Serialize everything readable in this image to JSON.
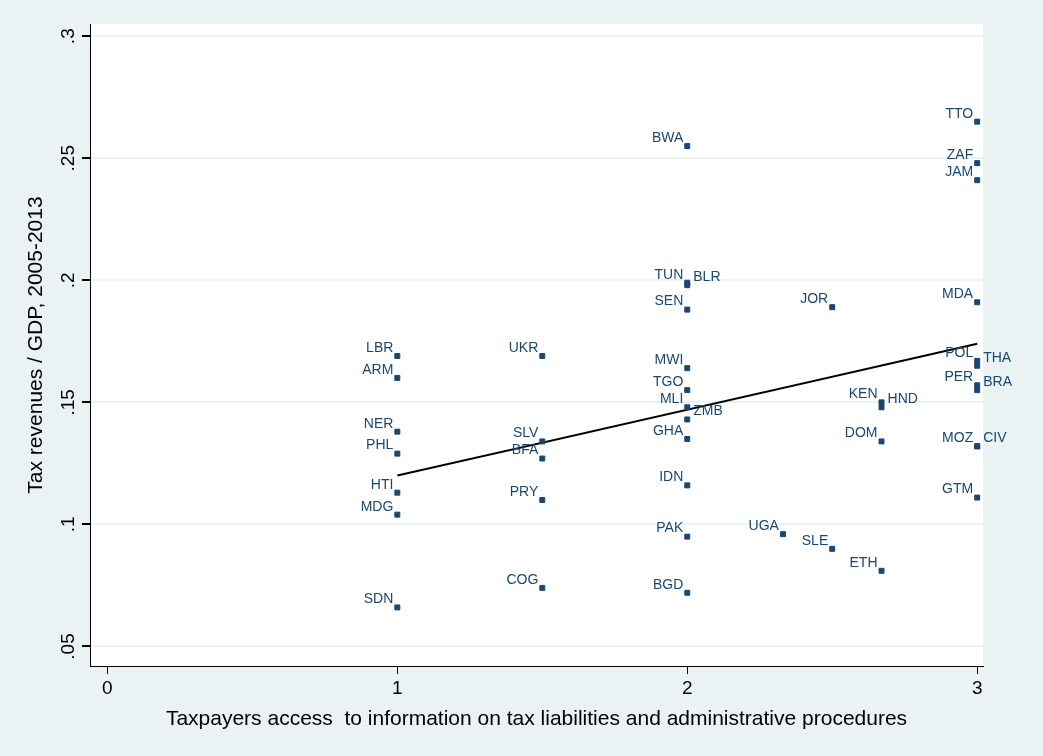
{
  "chart_data": {
    "type": "scatter",
    "xlabel": "Taxpayers access  to information on tax liabilities and administrative procedures",
    "ylabel": "Tax revenues / GDP, 2005-2013",
    "xlim": [
      -0.06,
      3.02
    ],
    "ylim": [
      0.042,
      0.305
    ],
    "xticks": [
      0,
      1,
      2,
      3
    ],
    "yticks": [
      {
        "value": 0.05,
        "label": ".05"
      },
      {
        "value": 0.1,
        "label": ".1"
      },
      {
        "value": 0.15,
        "label": ".15"
      },
      {
        "value": 0.2,
        "label": ".2"
      },
      {
        "value": 0.25,
        "label": ".25"
      },
      {
        "value": 0.3,
        "label": ".3"
      }
    ],
    "grid": "y",
    "series": [
      {
        "color": "#1a476f",
        "marker": "square",
        "x": [
          1,
          1,
          1,
          1,
          1,
          1,
          1,
          1.5,
          1.5,
          1.5,
          1.5,
          1.5,
          2,
          2,
          2,
          2,
          2,
          2,
          2,
          2,
          2,
          2,
          2,
          2,
          2.33,
          2.5,
          2.5,
          2.67,
          2.67,
          2.67,
          2.67,
          3,
          3,
          3,
          3,
          3,
          3,
          3,
          3,
          3,
          3,
          3
        ],
        "values": [
          0.169,
          0.16,
          0.138,
          0.129,
          0.113,
          0.104,
          0.066,
          0.169,
          0.134,
          0.127,
          0.11,
          0.074,
          0.255,
          0.199,
          0.198,
          0.188,
          0.164,
          0.155,
          0.148,
          0.143,
          0.135,
          0.116,
          0.095,
          0.072,
          0.096,
          0.09,
          0.189,
          0.15,
          0.148,
          0.134,
          0.081,
          0.265,
          0.248,
          0.241,
          0.191,
          0.167,
          0.165,
          0.157,
          0.155,
          0.132,
          0.132,
          0.111
        ],
        "value_labels": [
          "LBR",
          "ARM",
          "NER",
          "PHL",
          "HTI",
          "MDG",
          "SDN",
          "UKR",
          "SLV",
          "BFA",
          "PRY",
          "COG",
          "BWA",
          "TUN",
          "BLR",
          "SEN",
          "MWI",
          "TGO",
          "MLI",
          "ZMB",
          "GHA",
          "IDN",
          "PAK",
          "BGD",
          "UGA",
          "SLE",
          "JOR",
          "KEN",
          "HND",
          "DOM",
          "ETH",
          "TTO",
          "ZAF",
          "JAM",
          "MDA",
          "POL",
          "THA",
          "PER",
          "BRA",
          "MOZ",
          "CIV",
          "GTM"
        ]
      },
      {
        "type": "line",
        "color": "#000000",
        "x": [
          1,
          3
        ],
        "values": [
          0.12,
          0.174
        ]
      }
    ]
  }
}
